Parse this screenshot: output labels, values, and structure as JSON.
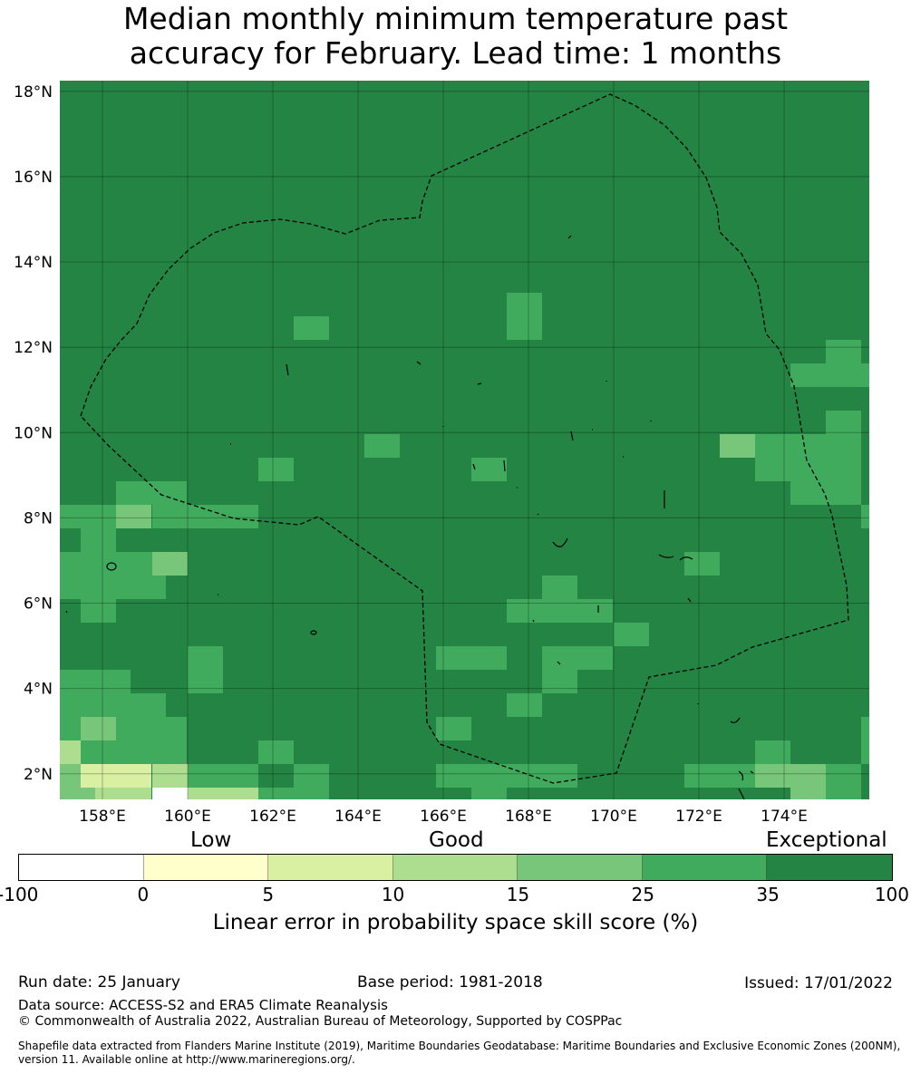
{
  "title": {
    "line1": "Median monthly minimum temperature past",
    "line2": "accuracy for February. Lead time: 1 months"
  },
  "map": {
    "lat_labels": [
      "18°N",
      "16°N",
      "14°N",
      "12°N",
      "10°N",
      "8°N",
      "6°N",
      "4°N",
      "2°N"
    ],
    "lon_labels": [
      "158°E",
      "160°E",
      "162°E",
      "164°E",
      "166°E",
      "168°E",
      "170°E",
      "172°E",
      "174°E"
    ],
    "lat_values": [
      18,
      16,
      14,
      12,
      10,
      8,
      6,
      4,
      2
    ],
    "lon_values": [
      158,
      160,
      162,
      164,
      166,
      168,
      170,
      172,
      174
    ],
    "lon_range": [
      157,
      176
    ],
    "lat_range": [
      1.4,
      18.25
    ],
    "boundary_style": "dashed black",
    "grid": true
  },
  "colorbar": {
    "categories": {
      "low": "Low",
      "good": "Good",
      "exceptional": "Exceptional"
    },
    "ticks": [
      "-100",
      "0",
      "5",
      "10",
      "15",
      "25",
      "35",
      "100"
    ],
    "colors": [
      "#ffffff",
      "#ffffcc",
      "#d9f0a3",
      "#addd8e",
      "#78c679",
      "#41ab5d",
      "#238443"
    ],
    "label": "Linear error in probability space skill score (%)"
  },
  "footer": {
    "run_date": "Run date: 25 January",
    "base_period": "Base period: 1981-2018",
    "issued": "Issued: 17/01/2022",
    "data_source": "Data source: ACCESS-S2 and ERA5 Climate Reanalysis",
    "copyright": "© Commonwealth of Australia 2022, Australian Bureau of Meteorology, Supported by COSPPac",
    "shapefile_line1": "Shapefile data extracted from Flanders Marine Institute (2019), Maritime Boundaries Geodatabase: Maritime Boundaries and Exclusive Economic Zones (200NM),",
    "shapefile_line2": "version 11. Available online at http://www.marineregions.org/."
  }
}
